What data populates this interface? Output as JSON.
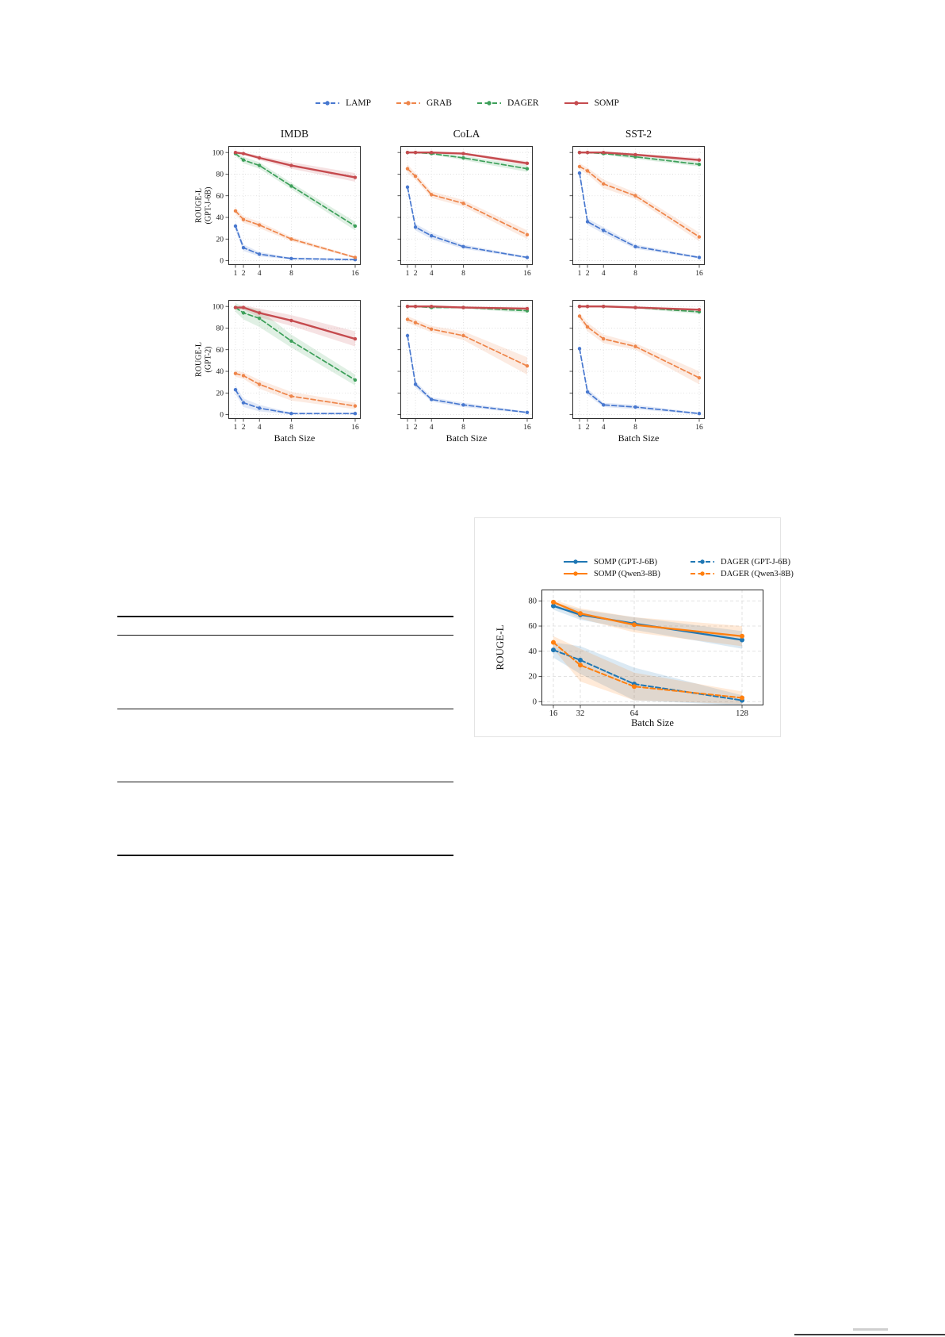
{
  "page": {
    "type": "academic-paper-page",
    "background": "#ffffff"
  },
  "figure1": {
    "col_titles": [
      "IMDB",
      "CoLA",
      "SST-2"
    ],
    "row_labels": [
      [
        "ROUGE-L",
        "(GPT-J-6B)"
      ],
      [
        "ROUGE-L",
        "(GPT-2)"
      ]
    ],
    "xlabel": "Batch Size",
    "grid": true,
    "legend_position": "top",
    "legend": [
      {
        "label": "LAMP",
        "color": "#4878cf",
        "style": "dashed"
      },
      {
        "label": "GRAB",
        "color": "#ee854a",
        "style": "dashed"
      },
      {
        "label": "DAGER",
        "color": "#3da05a",
        "style": "dashed"
      },
      {
        "label": "SOMP",
        "color": "#c54a4e",
        "style": "solid"
      }
    ]
  },
  "figure2": {
    "xlabel": "Batch Size",
    "ylabel": "ROUGE-L",
    "grid": true,
    "legend_position": "top",
    "legend_rows": [
      [
        "SOMP (GPT-J-6B)",
        "DAGER (GPT-J-6B)"
      ],
      [
        "SOMP (Qwen3-8B)",
        "DAGER (Qwen3-8B)"
      ]
    ]
  },
  "empty_table": {
    "description": "ruled table skeleton with no visible text",
    "rule_count": 5
  },
  "chart_data": [
    {
      "id": "fig1-gptj6b-imdb",
      "kind": "fig1",
      "type": "line",
      "title": "IMDB",
      "ylabel": "ROUGE-L (GPT-J-6B)",
      "x": [
        1,
        2,
        4,
        8,
        16
      ],
      "yticks": [
        0,
        20,
        40,
        60,
        80,
        100
      ],
      "ylim": [
        -4,
        106
      ],
      "show_yticklabels": true,
      "series": [
        {
          "name": "LAMP",
          "values": [
            32,
            12,
            6,
            2,
            1
          ],
          "band": [
            4,
            3,
            2,
            1,
            1
          ]
        },
        {
          "name": "GRAB",
          "values": [
            46,
            38,
            33,
            20,
            3
          ],
          "band": [
            3,
            3,
            3,
            2,
            1
          ]
        },
        {
          "name": "DAGER",
          "values": [
            99,
            93,
            88,
            69,
            32
          ],
          "band": [
            2,
            3,
            3,
            3,
            4
          ]
        },
        {
          "name": "SOMP",
          "values": [
            100,
            99,
            95,
            88,
            77
          ],
          "band": [
            1,
            1,
            2,
            3,
            4
          ]
        }
      ]
    },
    {
      "id": "fig1-gptj6b-cola",
      "kind": "fig1",
      "type": "line",
      "title": "CoLA",
      "ylabel": "ROUGE-L (GPT-J-6B)",
      "x": [
        1,
        2,
        4,
        8,
        16
      ],
      "yticks": [
        0,
        20,
        40,
        60,
        80,
        100
      ],
      "ylim": [
        -4,
        106
      ],
      "show_yticklabels": false,
      "series": [
        {
          "name": "LAMP",
          "values": [
            68,
            31,
            23,
            13,
            3
          ],
          "band": [
            3,
            3,
            3,
            2,
            1
          ]
        },
        {
          "name": "GRAB",
          "values": [
            85,
            78,
            61,
            53,
            24
          ],
          "band": [
            4,
            3,
            3,
            3,
            4
          ]
        },
        {
          "name": "DAGER",
          "values": [
            100,
            100,
            99,
            95,
            85
          ],
          "band": [
            1,
            1,
            1,
            2,
            3
          ]
        },
        {
          "name": "SOMP",
          "values": [
            100,
            100,
            100,
            99,
            90
          ],
          "band": [
            1,
            1,
            1,
            1,
            2
          ]
        }
      ]
    },
    {
      "id": "fig1-gptj6b-sst2",
      "kind": "fig1",
      "type": "line",
      "title": "SST-2",
      "ylabel": "ROUGE-L (GPT-J-6B)",
      "x": [
        1,
        2,
        4,
        8,
        16
      ],
      "yticks": [
        0,
        20,
        40,
        60,
        80,
        100
      ],
      "ylim": [
        -4,
        106
      ],
      "show_yticklabels": false,
      "series": [
        {
          "name": "LAMP",
          "values": [
            81,
            36,
            28,
            13,
            3
          ],
          "band": [
            2,
            3,
            3,
            2,
            1
          ]
        },
        {
          "name": "GRAB",
          "values": [
            87,
            83,
            71,
            60,
            22
          ],
          "band": [
            3,
            3,
            4,
            3,
            4
          ]
        },
        {
          "name": "DAGER",
          "values": [
            100,
            100,
            99,
            96,
            89
          ],
          "band": [
            1,
            1,
            1,
            2,
            2
          ]
        },
        {
          "name": "SOMP",
          "values": [
            100,
            100,
            100,
            98,
            93
          ],
          "band": [
            1,
            1,
            1,
            1,
            2
          ]
        }
      ]
    },
    {
      "id": "fig1-gpt2-imdb",
      "kind": "fig1",
      "type": "line",
      "title": "",
      "ylabel": "ROUGE-L (GPT-2)",
      "x": [
        1,
        2,
        4,
        8,
        16
      ],
      "yticks": [
        0,
        20,
        40,
        60,
        80,
        100
      ],
      "ylim": [
        -4,
        106
      ],
      "show_yticklabels": true,
      "series": [
        {
          "name": "LAMP",
          "values": [
            23,
            11,
            6,
            1,
            1
          ],
          "band": [
            4,
            4,
            3,
            1,
            1
          ]
        },
        {
          "name": "GRAB",
          "values": [
            38,
            36,
            28,
            17,
            8
          ],
          "band": [
            3,
            3,
            4,
            4,
            3
          ]
        },
        {
          "name": "DAGER",
          "values": [
            99,
            94,
            89,
            68,
            32
          ],
          "band": [
            4,
            6,
            8,
            6,
            5
          ]
        },
        {
          "name": "SOMP",
          "values": [
            99,
            99,
            94,
            87,
            70
          ],
          "band": [
            1,
            2,
            4,
            5,
            7
          ]
        }
      ]
    },
    {
      "id": "fig1-gpt2-cola",
      "kind": "fig1",
      "type": "line",
      "title": "",
      "ylabel": "ROUGE-L (GPT-2)",
      "x": [
        1,
        2,
        4,
        8,
        16
      ],
      "yticks": [
        0,
        20,
        40,
        60,
        80,
        100
      ],
      "ylim": [
        -4,
        106
      ],
      "show_yticklabels": false,
      "series": [
        {
          "name": "LAMP",
          "values": [
            73,
            28,
            14,
            9,
            2
          ],
          "band": [
            3,
            3,
            2,
            2,
            1
          ]
        },
        {
          "name": "GRAB",
          "values": [
            88,
            85,
            79,
            73,
            45
          ],
          "band": [
            3,
            3,
            3,
            4,
            8
          ]
        },
        {
          "name": "DAGER",
          "values": [
            100,
            100,
            99,
            99,
            96
          ],
          "band": [
            1,
            1,
            1,
            1,
            2
          ]
        },
        {
          "name": "SOMP",
          "values": [
            100,
            100,
            100,
            99,
            98
          ],
          "band": [
            1,
            1,
            1,
            1,
            1
          ]
        }
      ]
    },
    {
      "id": "fig1-gpt2-sst2",
      "kind": "fig1",
      "type": "line",
      "title": "",
      "ylabel": "ROUGE-L (GPT-2)",
      "x": [
        1,
        2,
        4,
        8,
        16
      ],
      "yticks": [
        0,
        20,
        40,
        60,
        80,
        100
      ],
      "ylim": [
        -4,
        106
      ],
      "show_yticklabels": false,
      "series": [
        {
          "name": "LAMP",
          "values": [
            61,
            21,
            9,
            7,
            1
          ],
          "band": [
            3,
            3,
            2,
            2,
            1
          ]
        },
        {
          "name": "GRAB",
          "values": [
            91,
            81,
            70,
            63,
            34
          ],
          "band": [
            3,
            4,
            4,
            3,
            6
          ]
        },
        {
          "name": "DAGER",
          "values": [
            100,
            100,
            100,
            99,
            95
          ],
          "band": [
            1,
            1,
            1,
            1,
            2
          ]
        },
        {
          "name": "SOMP",
          "values": [
            100,
            100,
            100,
            99,
            97
          ],
          "band": [
            1,
            1,
            1,
            1,
            1
          ]
        }
      ]
    },
    {
      "id": "fig2-scaling",
      "kind": "fig2",
      "type": "line",
      "title": "",
      "xlabel": "Batch Size",
      "ylabel": "ROUGE-L",
      "x": [
        16,
        32,
        64,
        128
      ],
      "yticks": [
        0,
        20,
        40,
        60,
        80
      ],
      "ylim": [
        -3,
        89
      ],
      "show_yticklabels": true,
      "series": [
        {
          "name": "DAGER (GPT-J-6B)",
          "color": "#1f77b4",
          "style": "dashed",
          "values": [
            41,
            33,
            14,
            1
          ],
          "band": [
            6,
            11,
            13,
            4
          ]
        },
        {
          "name": "DAGER (Qwen3-8B)",
          "color": "#ff7f0e",
          "style": "dashed",
          "values": [
            47,
            29,
            12,
            3
          ],
          "band": [
            5,
            13,
            11,
            5
          ]
        },
        {
          "name": "SOMP (GPT-J-6B)",
          "color": "#1f77b4",
          "style": "solid",
          "values": [
            76,
            69,
            62,
            49
          ],
          "band": [
            3,
            4,
            5,
            7
          ]
        },
        {
          "name": "SOMP (Qwen3-8B)",
          "color": "#ff7f0e",
          "style": "solid",
          "values": [
            79,
            70,
            61,
            52
          ],
          "band": [
            2,
            4,
            6,
            8
          ]
        }
      ]
    }
  ]
}
